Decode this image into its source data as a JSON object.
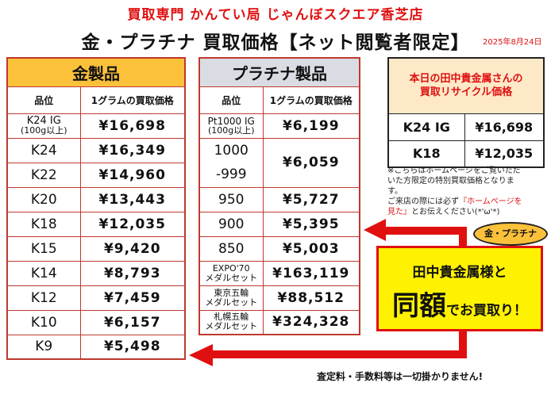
{
  "header": {
    "shop_line": "買取専門 かんてい局 じゃんぼスクエア香芝店",
    "title": "金・プラチナ 買取価格【ネット閲覧者限定】",
    "date": "2025年8月24日"
  },
  "gold": {
    "title": "金製品",
    "col_grade": "品位",
    "col_price": "1グラムの買取価格",
    "rows": [
      {
        "grade_line1": "K24 IG",
        "grade_line2": "(100g以上)",
        "price": "¥16,698"
      },
      {
        "grade_line1": "K24",
        "grade_line2": "",
        "price": "¥16,349"
      },
      {
        "grade_line1": "K22",
        "grade_line2": "",
        "price": "¥14,960"
      },
      {
        "grade_line1": "K20",
        "grade_line2": "",
        "price": "¥13,443"
      },
      {
        "grade_line1": "K18",
        "grade_line2": "",
        "price": "¥12,035"
      },
      {
        "grade_line1": "K15",
        "grade_line2": "",
        "price": "¥9,420"
      },
      {
        "grade_line1": "K14",
        "grade_line2": "",
        "price": "¥8,793"
      },
      {
        "grade_line1": "K12",
        "grade_line2": "",
        "price": "¥7,459"
      },
      {
        "grade_line1": "K10",
        "grade_line2": "",
        "price": "¥6,157"
      },
      {
        "grade_line1": "K9",
        "grade_line2": "",
        "price": "¥5,498"
      }
    ]
  },
  "platinum": {
    "title": "プラチナ製品",
    "col_grade": "品位",
    "col_price": "1グラムの買取価格",
    "pt1000_line1": "Pt1000 IG",
    "pt1000_line2": "(100g以上)",
    "pt1000_price": "¥6,199",
    "pt999_line1": "1000",
    "pt999_line2": "-999",
    "pt999_price": "¥6,059",
    "pt950": "950",
    "pt950_price": "¥5,727",
    "pt900": "900",
    "pt900_price": "¥5,395",
    "pt850": "850",
    "pt850_price": "¥5,003",
    "expo_line1": "EXPO'70",
    "expo_line2": "メダルセット",
    "expo_price": "¥163,119",
    "tokyo_line1": "東京五輪",
    "tokyo_line2": "メダルセット",
    "tokyo_price": "¥88,512",
    "sapporo_line1": "札幌五輪",
    "sapporo_line2": "メダルセット",
    "sapporo_price": "¥324,328"
  },
  "today": {
    "title_line1": "本日の田中貴金属さんの",
    "title_line2": "買取リサイクル価格",
    "rows": [
      {
        "grade": "K24 IG",
        "price": "¥16,698"
      },
      {
        "grade": "K18",
        "price": "¥12,035"
      }
    ]
  },
  "note": {
    "line1": "※こちらはホームページをご覧いただ",
    "line2": "いた方限定の特別買取価格となりま",
    "line3": "す。",
    "line4_a": "ご来店の際には必ず",
    "line4_red": "『ホームページを",
    "line5_red": "見た』",
    "line5_b": "とお伝えください(*'ω'*)"
  },
  "promo": {
    "badge": "金・プラチナ",
    "line1": "田中貴金属様と",
    "big": "同額",
    "rest": "でお買取り！"
  },
  "footer": {
    "text": "査定料・手数料等は一切掛かりません!"
  },
  "colors": {
    "red": "#e01010",
    "gold_header": "#fbc13a",
    "platinum_header": "#d9dde3",
    "promo_box": "#fff200",
    "today_header": "#fde9c8"
  }
}
